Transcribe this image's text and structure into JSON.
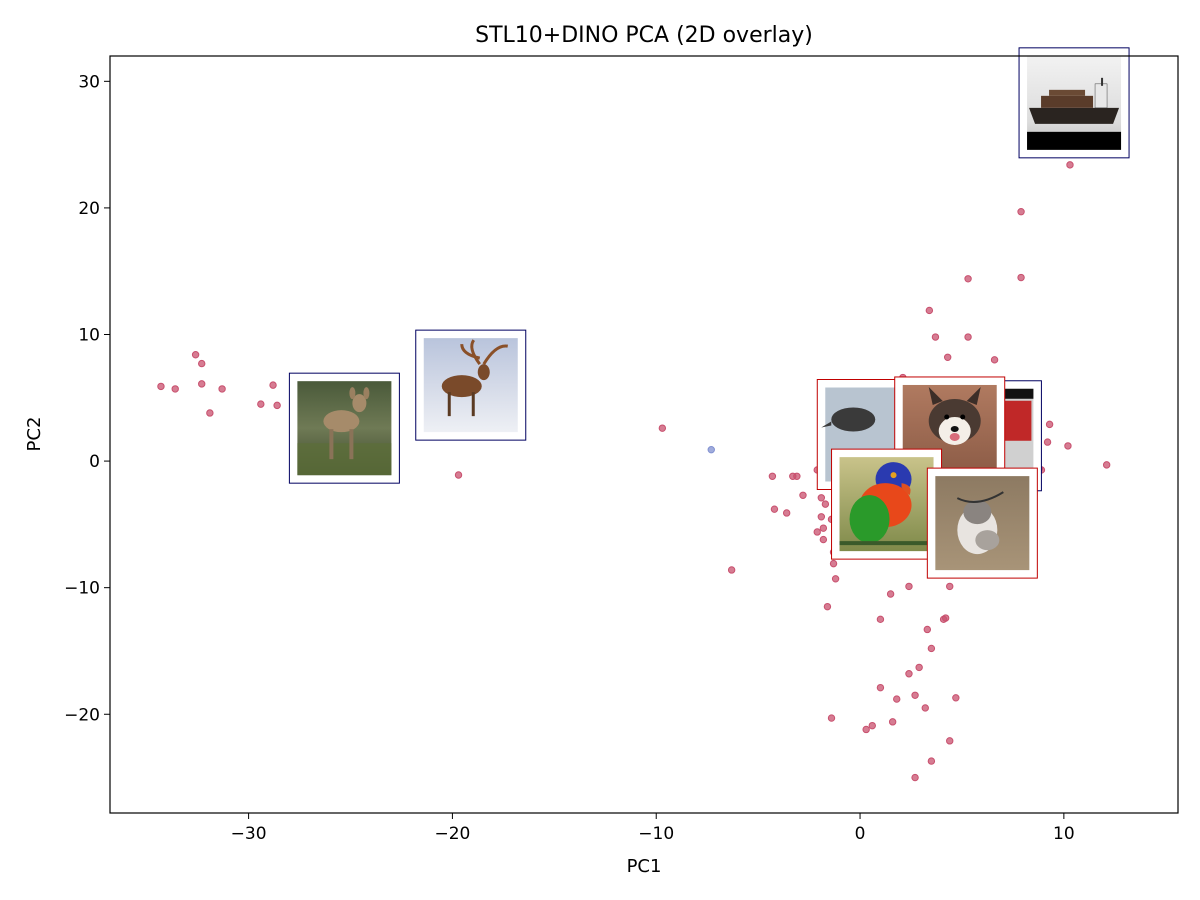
{
  "chart_data": {
    "type": "scatter",
    "title": "STL10+DINO PCA (2D overlay)",
    "xlabel": "PC1",
    "ylabel": "PC2",
    "xlim": [
      -36.8,
      15.6
    ],
    "ylim": [
      -27.8,
      32.0
    ],
    "xticks": [
      -30,
      -20,
      -10,
      0,
      10
    ],
    "yticks": [
      -20,
      -10,
      0,
      10,
      20,
      30
    ],
    "xtick_labels": [
      "−30",
      "−20",
      "−10",
      "0",
      "10"
    ],
    "ytick_labels": [
      "−20",
      "−10",
      "0",
      "10",
      "20",
      "30"
    ],
    "grid": false,
    "series": [
      {
        "color": "#c8506e",
        "points": [
          [
            -34.3,
            5.9
          ],
          [
            -33.6,
            5.7
          ],
          [
            -32.6,
            8.4
          ],
          [
            -32.3,
            7.7
          ],
          [
            -32.3,
            6.1
          ],
          [
            -31.9,
            3.8
          ],
          [
            -31.3,
            5.7
          ],
          [
            -29.4,
            4.5
          ],
          [
            -28.8,
            6.0
          ],
          [
            -28.6,
            4.4
          ],
          [
            -24.5,
            4.1
          ],
          [
            -22.9,
            4.3
          ],
          [
            -19.7,
            -1.1
          ],
          [
            -9.7,
            2.6
          ],
          [
            -6.3,
            -8.6
          ],
          [
            -4.3,
            -1.2
          ],
          [
            -4.2,
            -3.8
          ],
          [
            -3.6,
            -4.1
          ],
          [
            -3.3,
            -1.2
          ],
          [
            -3.1,
            -1.2
          ],
          [
            -2.8,
            -2.7
          ],
          [
            -2.1,
            -0.7
          ],
          [
            -2.1,
            -5.6
          ],
          [
            -1.9,
            -2.9
          ],
          [
            -1.9,
            -4.4
          ],
          [
            -1.8,
            -5.3
          ],
          [
            -1.8,
            -6.2
          ],
          [
            -1.7,
            -3.4
          ],
          [
            -1.6,
            -0.9
          ],
          [
            -1.6,
            -11.5
          ],
          [
            -1.4,
            -4.6
          ],
          [
            -1.3,
            -7.2
          ],
          [
            -1.3,
            -8.1
          ],
          [
            -1.2,
            -9.3
          ],
          [
            -1.4,
            -20.3
          ],
          [
            0.3,
            -21.2
          ],
          [
            0.6,
            -20.9
          ],
          [
            1.0,
            -12.5
          ],
          [
            1.0,
            -17.9
          ],
          [
            1.5,
            -10.5
          ],
          [
            1.6,
            -20.6
          ],
          [
            1.8,
            -18.8
          ],
          [
            2.1,
            6.6
          ],
          [
            2.4,
            -9.9
          ],
          [
            2.4,
            -16.8
          ],
          [
            2.7,
            -18.5
          ],
          [
            2.7,
            -25.0
          ],
          [
            2.9,
            -16.3
          ],
          [
            3.1,
            5.2
          ],
          [
            3.2,
            -19.5
          ],
          [
            3.3,
            -13.3
          ],
          [
            3.4,
            11.9
          ],
          [
            3.5,
            -14.8
          ],
          [
            3.5,
            -23.7
          ],
          [
            3.7,
            9.8
          ],
          [
            4.1,
            -12.5
          ],
          [
            4.2,
            -12.4
          ],
          [
            4.3,
            8.2
          ],
          [
            4.4,
            -22.1
          ],
          [
            4.4,
            -9.9
          ],
          [
            4.7,
            -18.7
          ],
          [
            5.3,
            14.4
          ],
          [
            5.3,
            9.8
          ],
          [
            6.6,
            8.0
          ],
          [
            7.9,
            19.7
          ],
          [
            7.9,
            14.5
          ],
          [
            8.5,
            27.2
          ],
          [
            8.5,
            26.1
          ],
          [
            8.7,
            2.2
          ],
          [
            8.8,
            -0.6
          ],
          [
            8.9,
            -0.7
          ],
          [
            9.1,
            28.4
          ],
          [
            9.2,
            29.0
          ],
          [
            9.2,
            1.5
          ],
          [
            9.3,
            2.9
          ],
          [
            9.3,
            25.6
          ],
          [
            10.2,
            1.2
          ],
          [
            10.3,
            23.4
          ],
          [
            12.1,
            -0.3
          ]
        ]
      },
      {
        "color": "#8090d0",
        "points": [
          [
            -7.3,
            0.9
          ]
        ]
      }
    ],
    "image_overlays": [
      {
        "name": "deer-thumbnail",
        "subject": "deer",
        "center": [
          -25.3,
          2.6
        ],
        "border": "#000060"
      },
      {
        "name": "reindeer-thumbnail",
        "subject": "reindeer",
        "center": [
          -19.1,
          6.0
        ],
        "border": "#000060"
      },
      {
        "name": "ship-thumbnail",
        "subject": "ship",
        "center": [
          10.5,
          28.3
        ],
        "border": "#000060"
      },
      {
        "name": "bird-thumbnail",
        "subject": "bird",
        "center": [
          0.6,
          2.1
        ],
        "border": "#c00000"
      },
      {
        "name": "airplane-thumbnail",
        "subject": "airplane",
        "center": [
          6.2,
          2.0
        ],
        "border": "#000060"
      },
      {
        "name": "dog-thumbnail",
        "subject": "dog",
        "center": [
          4.4,
          2.3
        ],
        "border": "#c00000"
      },
      {
        "name": "parrot-thumbnail",
        "subject": "parrot",
        "center": [
          1.3,
          -3.4
        ],
        "border": "#c00000"
      },
      {
        "name": "husky-thumbnail",
        "subject": "dog",
        "center": [
          6.0,
          -4.9
        ],
        "border": "#c00000"
      }
    ]
  }
}
